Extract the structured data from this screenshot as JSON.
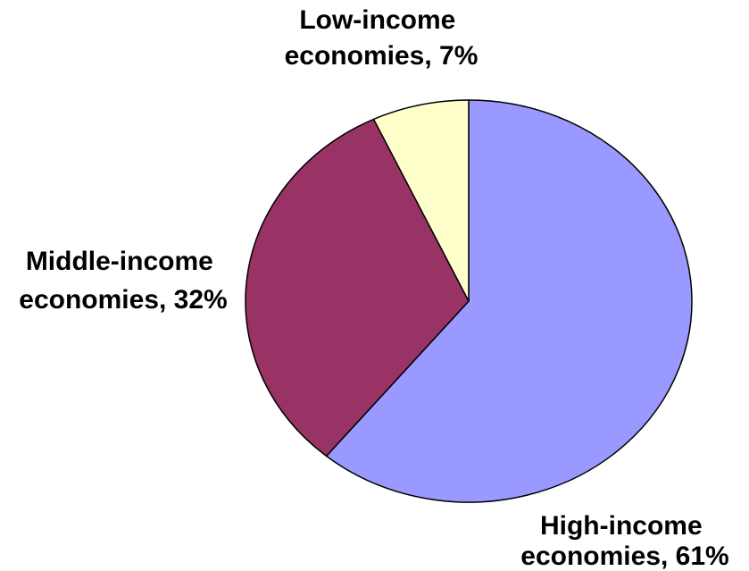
{
  "chart_data": {
    "type": "pie",
    "title": "",
    "slices": [
      {
        "label_lines": [
          "High-income",
          "economies, 61%"
        ],
        "category": "High-income economies",
        "value": 61,
        "color": "#9999ff"
      },
      {
        "label_lines": [
          "Middle-income",
          "economies, 32%"
        ],
        "category": "Middle-income economies",
        "value": 32,
        "color": "#993366"
      },
      {
        "label_lines": [
          "Low-income",
          "economies, 7%"
        ],
        "category": "Low-income economies",
        "value": 7,
        "color": "#ffffcc"
      }
    ],
    "start_angle": "12 o'clock",
    "direction": "clockwise",
    "legend": "none",
    "outline_color": "#000000"
  }
}
